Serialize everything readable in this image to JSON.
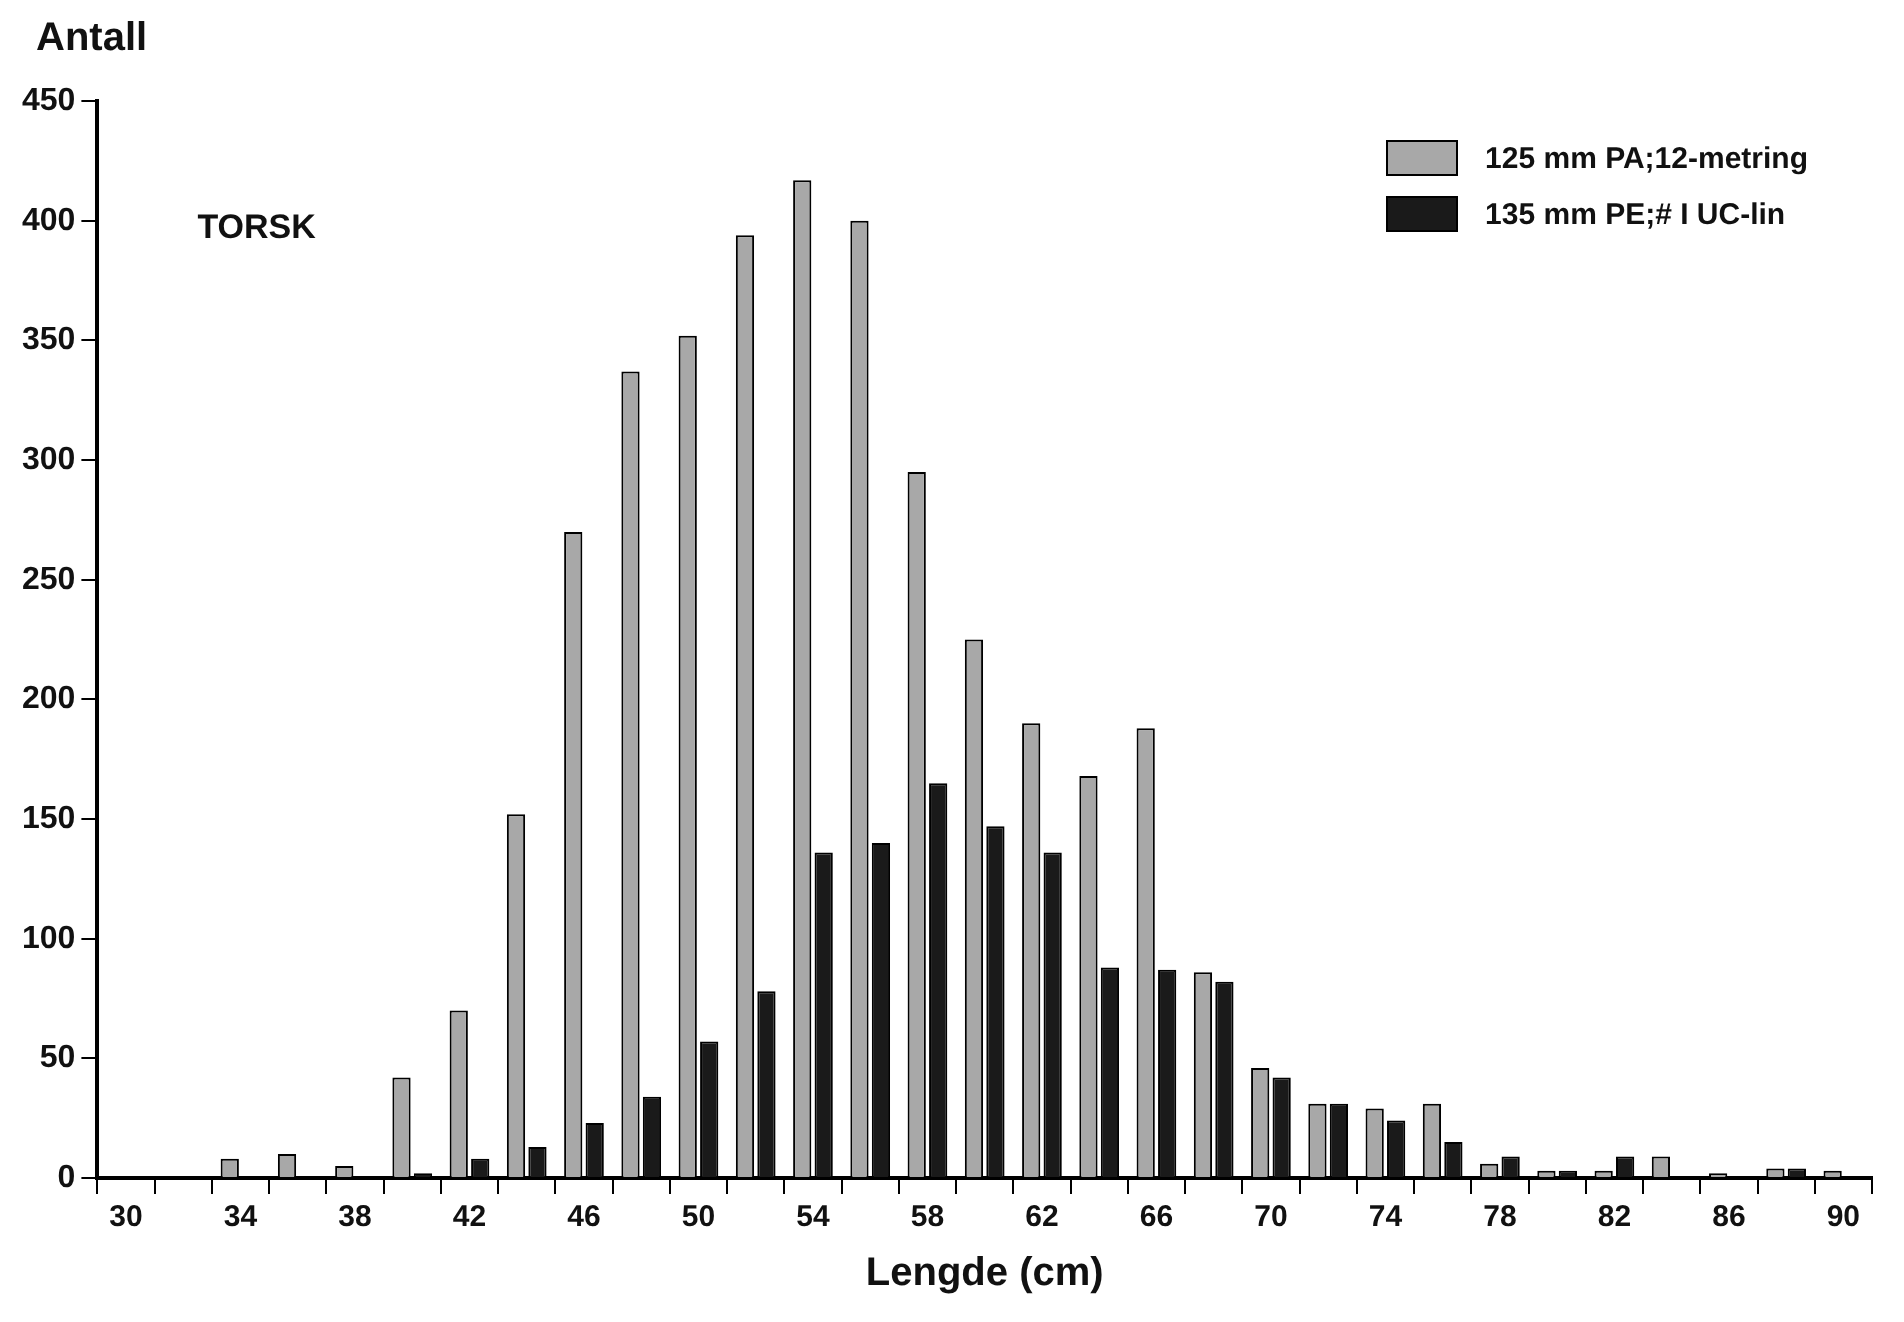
{
  "chart_data": {
    "type": "bar",
    "ylabel": "Antall",
    "xlabel": "Lengde (cm)",
    "categories": [
      "30",
      null,
      "34",
      null,
      "38",
      null,
      "42",
      null,
      "46",
      null,
      "50",
      null,
      "54",
      null,
      "58",
      null,
      "62",
      null,
      "66",
      null,
      "70",
      null,
      "74",
      null,
      "78",
      null,
      "82",
      null,
      "86",
      null,
      "90"
    ],
    "series": [
      {
        "name": "125 mm PA;12-metring",
        "color": "#a8a8a8",
        "values": [
          0,
          0,
          8,
          10,
          5,
          42,
          70,
          152,
          270,
          337,
          352,
          394,
          417,
          400,
          295,
          225,
          190,
          168,
          188,
          86,
          46,
          31,
          29,
          31,
          6,
          3,
          3,
          9,
          2,
          4,
          3
        ]
      },
      {
        "name": "135 mm PE;# I UC-lin",
        "color": "#1a1a1a",
        "values": [
          0,
          0,
          0,
          0,
          0,
          2,
          8,
          13,
          23,
          34,
          57,
          78,
          136,
          140,
          165,
          147,
          136,
          88,
          87,
          82,
          42,
          31,
          24,
          15,
          9,
          3,
          9,
          0,
          0,
          4,
          0
        ]
      }
    ],
    "ylim": [
      0,
      450
    ],
    "yticks": [
      0,
      50,
      100,
      150,
      200,
      250,
      300,
      350,
      400,
      450
    ],
    "grid": false,
    "legend": "top right",
    "annotations": [
      "TORSK"
    ]
  }
}
